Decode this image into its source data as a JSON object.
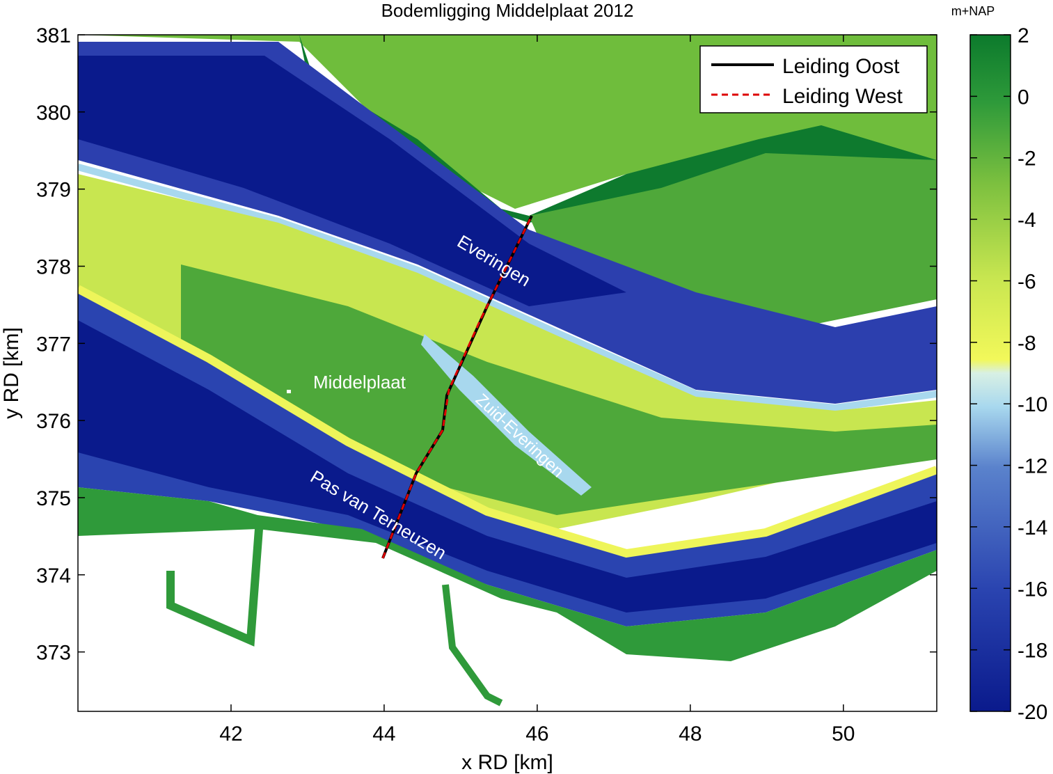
{
  "title": "Bodemligging Middelplaat 2012",
  "xlabel": "x RD [km]",
  "ylabel": "y RD [km]",
  "x_ticks": [
    "42",
    "44",
    "46",
    "48",
    "50"
  ],
  "y_ticks": [
    "381",
    "380",
    "379",
    "378",
    "377",
    "376",
    "375",
    "374",
    "373"
  ],
  "colorbar": {
    "unit": "m+NAP",
    "ticks": [
      "2",
      "0",
      "-2",
      "-4",
      "-6",
      "-8",
      "-10",
      "-12",
      "-14",
      "-16",
      "-18",
      "-20"
    ],
    "range": [
      -20,
      2
    ]
  },
  "legend": {
    "items": [
      {
        "label": "Leiding Oost",
        "color": "#000000",
        "style": "solid"
      },
      {
        "label": "Leiding West",
        "color": "#dd0000",
        "style": "dashed"
      }
    ]
  },
  "map_labels": {
    "everingen": "Everingen",
    "middelplaat": "Middelplaat",
    "zuid_everingen": "Zuid-Everingen",
    "pas_van_terneuzen": "Pas van Terneuzen"
  },
  "colors": {
    "deep": "#0a1a8c",
    "mid_blue": "#3d5fbd",
    "light_blue": "#a8d8ee",
    "yellow": "#eef55a",
    "light_green": "#8cc63f",
    "green": "#2f9a3a",
    "dark_green": "#0e7a2e"
  }
}
